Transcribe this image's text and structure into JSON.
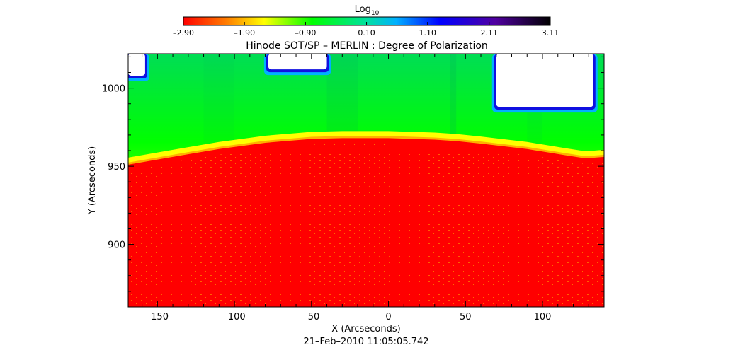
{
  "chart_data": {
    "type": "heatmap",
    "title": "Hinode SOT/SP – MERLIN : Degree of Polarization",
    "xlabel": "X (Arcseconds)",
    "ylabel": "Y (Arcseconds)",
    "timestamp": "21–Feb–2010 11:05:05.742",
    "colorbar": {
      "label_base": "Log",
      "label_sub": "10",
      "ticks": [
        "–2.90",
        "–1.90",
        "–0.90",
        "0.10",
        "1.10",
        "2.11",
        "3.11"
      ],
      "tick_values": [
        -2.9,
        -1.9,
        -0.9,
        0.1,
        1.1,
        2.11,
        3.11
      ],
      "range": [
        -2.9,
        3.11
      ]
    },
    "xlim": [
      -169,
      140
    ],
    "ylim": [
      860,
      1022
    ],
    "xticks": [
      {
        "value": -150,
        "label": "–150"
      },
      {
        "value": -100,
        "label": "–100"
      },
      {
        "value": -50,
        "label": "–50"
      },
      {
        "value": 0,
        "label": "0"
      },
      {
        "value": 50,
        "label": "50"
      },
      {
        "value": 100,
        "label": "100"
      }
    ],
    "yticks": [
      {
        "value": 900,
        "label": "900"
      },
      {
        "value": 950,
        "label": "950"
      },
      {
        "value": 1000,
        "label": "1000"
      }
    ],
    "limb_profile": {
      "x": [
        -169,
        -140,
        -110,
        -80,
        -50,
        -30,
        0,
        30,
        45,
        60,
        90,
        115,
        128,
        140
      ],
      "y": [
        951,
        956,
        961,
        965,
        967.5,
        968,
        968,
        967,
        966,
        964.5,
        961,
        957,
        955,
        956
      ]
    },
    "saturated_regions": [
      {
        "x": [
          -169,
          -158
        ],
        "y": [
          1008,
          1022
        ]
      },
      {
        "x": [
          -78,
          -40
        ],
        "y": [
          1012,
          1022
        ]
      },
      {
        "x": [
          70,
          133
        ],
        "y": [
          988,
          1022
        ]
      }
    ]
  }
}
